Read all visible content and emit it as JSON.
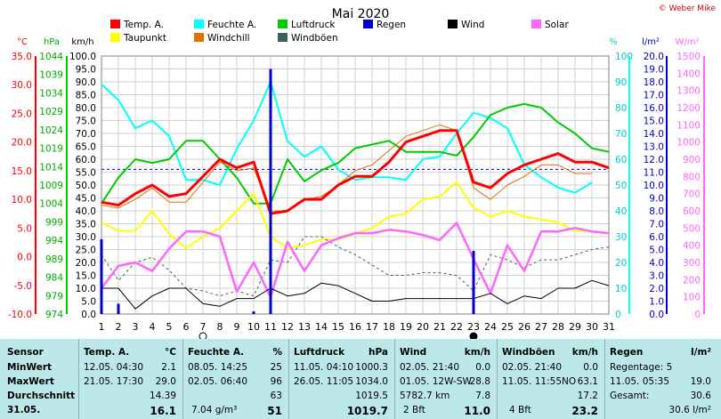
{
  "title": "Mai 2020",
  "credit": "© Weber Mike",
  "legend": [
    {
      "label": "Temp. A.",
      "color": "#ff0000"
    },
    {
      "label": "Feuchte A.",
      "color": "#00ffff"
    },
    {
      "label": "Luftdruck",
      "color": "#00cc00"
    },
    {
      "label": "Regen",
      "color": "#0000cc"
    },
    {
      "label": "Wind",
      "color": "#000000"
    },
    {
      "label": "Solar",
      "color": "#ff66ff"
    },
    {
      "label": "Taupunkt",
      "color": "#ffff00"
    },
    {
      "label": "Windchill",
      "color": "#e07000"
    },
    {
      "label": "Windböen",
      "color": "#406060"
    }
  ],
  "axis_units": {
    "temp": "°C",
    "pressure": "hPa",
    "wind": "km/h",
    "humidity": "%",
    "rain": "l/m²",
    "solar": "W/m²"
  },
  "chart_data": {
    "type": "line",
    "x": [
      1,
      2,
      3,
      4,
      5,
      6,
      7,
      8,
      9,
      10,
      11,
      12,
      13,
      14,
      15,
      16,
      17,
      18,
      19,
      20,
      21,
      22,
      23,
      24,
      25,
      26,
      27,
      28,
      29,
      30,
      31
    ],
    "axes": {
      "temp": {
        "label": "°C",
        "range": [
          -10,
          35
        ],
        "ticks": [
          -10,
          -5,
          0,
          5,
          10,
          15,
          20,
          25,
          30,
          35
        ]
      },
      "pressure": {
        "label": "hPa",
        "range": [
          974,
          1044
        ],
        "ticks": [
          974,
          979,
          984,
          989,
          994,
          999,
          1004,
          1009,
          1014,
          1019,
          1024,
          1029,
          1034,
          1039,
          1044
        ]
      },
      "wind": {
        "label": "km/h",
        "range": [
          0,
          100
        ],
        "ticks": [
          0,
          5,
          10,
          15,
          20,
          25,
          30,
          35,
          40,
          45,
          50,
          55,
          60,
          65,
          70,
          75,
          80,
          85,
          90,
          95,
          100
        ]
      },
      "humidity": {
        "label": "%",
        "range": [
          0,
          100
        ],
        "ticks": [
          0,
          10,
          20,
          30,
          40,
          50,
          60,
          70,
          80,
          90,
          100
        ]
      },
      "rain": {
        "label": "l/m²",
        "range": [
          0,
          20
        ],
        "ticks": [
          0,
          1,
          2,
          3,
          4,
          5,
          6,
          7,
          8,
          9,
          10,
          11,
          12,
          13,
          14,
          15,
          16,
          17,
          18,
          19,
          20
        ]
      },
      "solar": {
        "label": "W/m²",
        "range": [
          0,
          1500
        ],
        "ticks": [
          0,
          100,
          200,
          300,
          400,
          500,
          600,
          700,
          800,
          900,
          1000,
          1100,
          1200,
          1300,
          1400,
          1500
        ]
      }
    },
    "series": [
      {
        "name": "Feuchte A.",
        "axis": "humidity",
        "color": "#00ffff",
        "width": 2,
        "values": [
          89,
          83,
          72,
          75,
          69,
          52,
          52,
          50,
          64,
          75,
          90,
          67,
          61,
          65,
          56,
          52,
          53,
          53,
          52,
          60,
          61,
          70,
          78,
          76,
          72,
          58,
          53,
          49,
          47,
          51,
          null
        ]
      },
      {
        "name": "Luftdruck",
        "axis": "pressure",
        "color": "#00cc00",
        "width": 2,
        "values": [
          1004,
          1011,
          1016,
          1015,
          1016,
          1021,
          1021,
          1016,
          1011,
          1004,
          1004,
          1016,
          1010,
          1013,
          1015,
          1019,
          1020,
          1021,
          1018,
          1018,
          1018,
          1017,
          1022,
          1028,
          1030,
          1031,
          1030,
          1026,
          1023,
          1019,
          1018
        ]
      },
      {
        "name": "Taupunkt",
        "axis": "temp",
        "color": "#ffff00",
        "width": 2,
        "values": [
          6,
          4.5,
          4.5,
          8,
          4,
          1.5,
          3.5,
          5,
          8,
          11,
          3.5,
          1.5,
          2,
          3,
          3,
          4,
          5,
          7,
          7.5,
          10,
          10.5,
          13,
          8.5,
          7,
          8,
          7,
          6.5,
          6,
          4.5,
          4.5,
          null
        ]
      },
      {
        "name": "Windchill",
        "axis": "temp",
        "color": "#e07000",
        "width": 1,
        "values": [
          9,
          8.5,
          10,
          12,
          9.5,
          9.5,
          13,
          16.5,
          15,
          15.5,
          8,
          8,
          10,
          10.5,
          12.5,
          15,
          16,
          18.5,
          21,
          22,
          23,
          22,
          12,
          10,
          12.5,
          14,
          16,
          16,
          14.5,
          14.5,
          null
        ]
      },
      {
        "name": "Temp. A.",
        "axis": "temp",
        "color": "#ff0000",
        "width": 3,
        "values": [
          9.5,
          9,
          11,
          12.5,
          10.5,
          11,
          14,
          17,
          15.5,
          16.5,
          7.5,
          8,
          10,
          10,
          12.5,
          14,
          14,
          16.5,
          20,
          21,
          22,
          22,
          13,
          12,
          14.5,
          16,
          17,
          18,
          16.5,
          16.5,
          15.5
        ]
      },
      {
        "name": "Windböen",
        "axis": "wind",
        "color": "#406060",
        "width": 1,
        "dash": true,
        "values": [
          23,
          13,
          20,
          22,
          17,
          10,
          9,
          7,
          9,
          7,
          21,
          20,
          30,
          30,
          26,
          23,
          19,
          15,
          15,
          16,
          16,
          15,
          9,
          23,
          21,
          18,
          21,
          21,
          23,
          25,
          26
        ]
      },
      {
        "name": "Solar",
        "axis": "solar",
        "color": "#ff66ff",
        "width": 2.5,
        "values": [
          150,
          280,
          300,
          250,
          380,
          480,
          480,
          450,
          130,
          300,
          100,
          420,
          250,
          400,
          440,
          470,
          470,
          490,
          480,
          460,
          430,
          530,
          320,
          120,
          400,
          250,
          480,
          480,
          500,
          480,
          470
        ]
      },
      {
        "name": "Wind",
        "axis": "wind",
        "color": "#000000",
        "width": 1,
        "values": [
          10,
          10,
          2,
          7,
          10,
          10,
          4,
          3,
          6,
          6,
          10,
          7,
          8,
          12,
          11,
          8,
          5,
          5,
          6,
          6,
          6,
          6,
          6,
          8,
          4,
          7,
          6,
          10,
          10,
          13,
          11
        ]
      }
    ],
    "bars": {
      "name": "Regen",
      "axis": "rain",
      "color": "#0000cc",
      "values": [
        5.8,
        0.8,
        0,
        0,
        0,
        0,
        0,
        0,
        0,
        0.2,
        19,
        0,
        0,
        0,
        0,
        0,
        0,
        0,
        0,
        0,
        0,
        0,
        4.9,
        0,
        0,
        0,
        0,
        0,
        0,
        0,
        0
      ]
    },
    "reference": {
      "axis": "pressure",
      "value": 1013.25,
      "color": "#0000cc",
      "style": "dashed"
    },
    "markers": [
      {
        "day": 7,
        "symbol": "full-moon"
      },
      {
        "day": 23,
        "symbol": "new-moon"
      }
    ]
  },
  "stats": {
    "sensor": {
      "header": "Sensor",
      "rows": [
        "MinWert",
        "MaxWert",
        "Durchschnitt"
      ],
      "date": "31.05."
    },
    "temp": {
      "header": "Temp. A.",
      "unit": "°C",
      "min_when": "12.05.  04:30",
      "min": "2.1",
      "max_when": "21.05.  17:30",
      "max": "29.0",
      "avg": "14.39",
      "current": "16.1"
    },
    "humidity": {
      "header": "Feuchte A.",
      "unit": "%",
      "min_when": "08.05.  14:25",
      "min": "25",
      "max_when": "02.05.  06:40",
      "max": "96",
      "avg": "63",
      "extra": "7.04 g/m³",
      "current": "51"
    },
    "pressure": {
      "header": "Luftdruck",
      "unit": "hPa",
      "min_when": "11.05.  04:10",
      "min": "1000.3",
      "max_when": "26.05.  11:05",
      "max": "1034.0",
      "avg": "1019.5",
      "current": "1019.7"
    },
    "wind": {
      "header": "Wind",
      "unit": "km/h",
      "min_when": "02.05.  21:40",
      "min": "0.0",
      "max_when": "01.05.  12W-SW",
      "max": "28.8",
      "avg_label": "5782.7 km",
      "avg": "7.8",
      "extra": "2 Bft",
      "current": "11.0"
    },
    "gust": {
      "header": "Windböen",
      "unit": "km/h",
      "min_when": "02.05.  21:40",
      "min": "0.0",
      "max_when": "11.05.  11:55NO",
      "max": "63.1",
      "avg": "17.2",
      "extra": "4 Bft",
      "current": "23.2"
    },
    "rain": {
      "header": "Regen",
      "unit": "l/m²",
      "row1": "Regentage: 5",
      "max_when": "11.05.  05:35",
      "max": "19.0",
      "total_label": "Gesamt:",
      "total": "30.6",
      "current": "30.6 l/m²"
    }
  }
}
